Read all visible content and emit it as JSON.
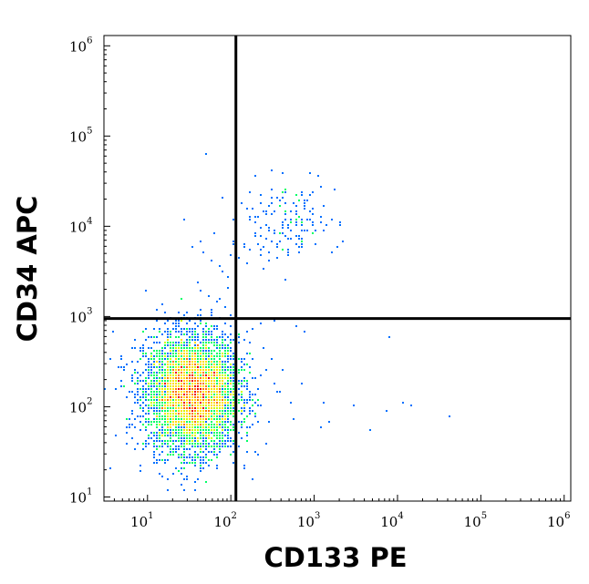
{
  "chart_data": {
    "type": "scatter",
    "title": "",
    "xlabel": "CD133 PE",
    "ylabel": "CD34 APC",
    "xscale": "log",
    "yscale": "log",
    "xlim": [
      3,
      1200000
    ],
    "ylim": [
      9,
      1300000
    ],
    "x_ticks": [
      {
        "value": 10,
        "base": "10",
        "exp": "1"
      },
      {
        "value": 100,
        "base": "10",
        "exp": "2"
      },
      {
        "value": 1000,
        "base": "10",
        "exp": "3"
      },
      {
        "value": 10000,
        "base": "10",
        "exp": "4"
      },
      {
        "value": 100000,
        "base": "10",
        "exp": "5"
      },
      {
        "value": 1000000,
        "base": "10",
        "exp": "6"
      }
    ],
    "y_ticks": [
      {
        "value": 10,
        "base": "10",
        "exp": "1"
      },
      {
        "value": 100,
        "base": "10",
        "exp": "2"
      },
      {
        "value": 1000,
        "base": "10",
        "exp": "3"
      },
      {
        "value": 10000,
        "base": "10",
        "exp": "4"
      },
      {
        "value": 100000,
        "base": "10",
        "exp": "5"
      },
      {
        "value": 1000000,
        "base": "10",
        "exp": "6"
      }
    ],
    "quadrant_gates": {
      "x": 115,
      "y": 950
    },
    "density_colors": [
      "#0000ff",
      "#0070ff",
      "#00ccff",
      "#00ff66",
      "#ccff00",
      "#ffdd00",
      "#ff7700",
      "#ee0000"
    ],
    "populations": [
      {
        "center_x": 35,
        "center_y": 140,
        "spread_x_log": 0.28,
        "spread_y_log": 0.32,
        "events": 5200
      },
      {
        "center_x": 450,
        "center_y": 11000,
        "spread_x_log": 0.32,
        "spread_y_log": 0.22,
        "events": 160
      }
    ],
    "sparse_events": [
      [
        50,
        62000
      ],
      [
        28,
        12000
      ],
      [
        4.5,
        280
      ],
      [
        4.2,
        160
      ],
      [
        3.6,
        20
      ],
      [
        1300,
        110
      ],
      [
        1500,
        65
      ],
      [
        3000,
        100
      ],
      [
        4800,
        55
      ],
      [
        7500,
        90
      ],
      [
        12000,
        110
      ],
      [
        15000,
        100
      ],
      [
        8000,
        600
      ],
      [
        42000,
        80
      ],
      [
        1200,
        60
      ],
      [
        50,
        38
      ],
      [
        800,
        650
      ],
      [
        620,
        780
      ],
      [
        330,
        900
      ],
      [
        250,
        430
      ],
      [
        700,
        180
      ],
      [
        420,
        250
      ],
      [
        380,
        140
      ],
      [
        520,
        110
      ],
      [
        310,
        330
      ],
      [
        180,
        700
      ],
      [
        240,
        820
      ],
      [
        150,
        560
      ],
      [
        160,
        300
      ],
      [
        200,
        200
      ],
      [
        140,
        180
      ],
      [
        130,
        120
      ],
      [
        170,
        95
      ],
      [
        210,
        150
      ],
      [
        125,
        250
      ],
      [
        36,
        6000
      ],
      [
        48,
        5200
      ],
      [
        60,
        4200
      ],
      [
        75,
        3500
      ],
      [
        90,
        2700
      ],
      [
        42,
        2300
      ],
      [
        55,
        1700
      ],
      [
        68,
        1400
      ],
      [
        85,
        1250
      ],
      [
        45,
        1150
      ],
      [
        100,
        4800
      ],
      [
        110,
        6200
      ],
      [
        95,
        2000
      ],
      [
        62,
        8500
      ],
      [
        80,
        3100
      ]
    ]
  }
}
